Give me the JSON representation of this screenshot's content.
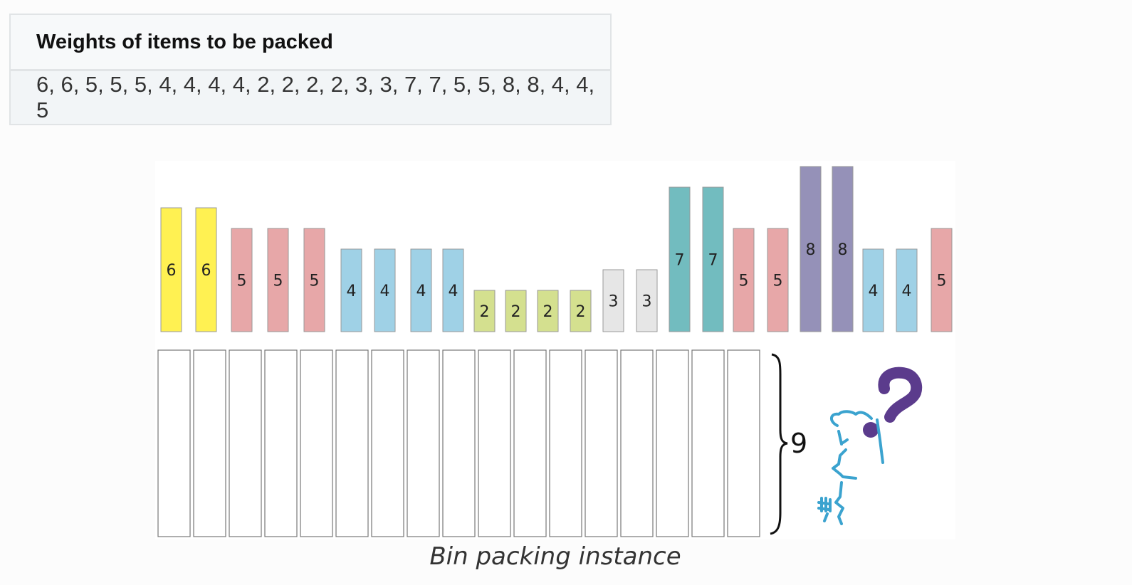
{
  "table": {
    "header": "Weights of items to be packed",
    "weights_text": "6, 6, 5, 5, 5, 4, 4, 4, 4, 2, 2, 2, 2, 3, 3, 7, 7, 5, 5, 8, 8, 4, 4, 5"
  },
  "diagram": {
    "items": [
      6,
      6,
      5,
      5,
      5,
      4,
      4,
      4,
      4,
      2,
      2,
      2,
      2,
      3,
      3,
      7,
      7,
      5,
      5,
      8,
      8,
      4,
      4,
      5
    ],
    "item_colors": {
      "2": "#d4e08f",
      "3": "#e6e6e6",
      "4": "#9fd1e6",
      "5": "#e7a7a8",
      "6": "#fff152",
      "7": "#72bcbf",
      "8": "#9591b8"
    },
    "bin_count": 17,
    "bin_capacity_label": "9",
    "thinker_colors": {
      "figure": "#3ba3cf",
      "question_mark": "#5b3b8c"
    }
  },
  "caption": "Bin packing instance"
}
